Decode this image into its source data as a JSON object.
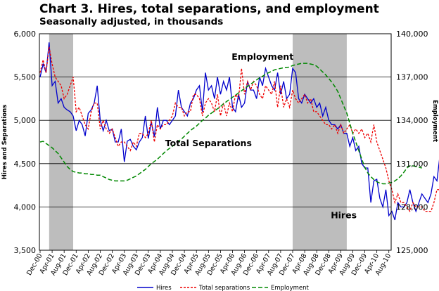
{
  "chart_data": {
    "type": "line",
    "title": "Chart 3. Hires, total separations, and employment",
    "subtitle": "Seasonally adjusted, in thousands",
    "ylabel_left": "Hires and Separations",
    "ylabel_right": "Employment",
    "ylim_left": [
      3500,
      6000
    ],
    "ylim_right": [
      125000,
      140000
    ],
    "yticks_left": [
      "3,500",
      "4,000",
      "4,500",
      "5,000",
      "5,500",
      "6,000"
    ],
    "yticks_right": [
      "125,000",
      "128,000",
      "131,000",
      "134,000",
      "137,000",
      "140,000"
    ],
    "x_start": "2000-12",
    "x_tick_labels": [
      "Dec-00",
      "Apr-01",
      "Aug-01",
      "Dec-01",
      "Apr-02",
      "Aug-02",
      "Dec-02",
      "Apr-03",
      "Aug-03",
      "Dec-03",
      "Apr-04",
      "Aug-04",
      "Dec-04",
      "Apr-05",
      "Aug-05",
      "Dec-05",
      "Apr-06",
      "Aug-06",
      "Dec-06",
      "Apr-07",
      "Aug-07",
      "Dec-07",
      "Apr-08",
      "Aug-08",
      "Dec-08",
      "Apr-09",
      "Aug-09",
      "Dec-09",
      "Apr-10",
      "Aug-10"
    ],
    "recessions": [
      [
        "2001-03",
        "2001-11"
      ],
      [
        "2007-12",
        "2009-06"
      ]
    ],
    "annotations": [
      {
        "text": "Employment",
        "x": "2007-02",
        "y_right": 138200
      },
      {
        "text": "Total Separations",
        "x": "2005-08",
        "y_left": 4700
      },
      {
        "text": "Hires",
        "x": "2009-05",
        "y_left": 3870
      }
    ],
    "legend_position": "bottom",
    "series": [
      {
        "name": "Hires",
        "axis": "left",
        "color": "#0000cc",
        "dash": "solid",
        "values": [
          5500,
          5650,
          5550,
          5900,
          5400,
          5450,
          5200,
          5250,
          5150,
          5120,
          5100,
          5050,
          4880,
          5000,
          4950,
          4820,
          5080,
          5120,
          5200,
          5400,
          5000,
          4880,
          5000,
          4880,
          4900,
          4750,
          4750,
          4900,
          4520,
          4760,
          4780,
          4700,
          4660,
          4750,
          4800,
          5050,
          4790,
          4980,
          4810,
          5150,
          4900,
          5000,
          5000,
          4950,
          5000,
          5050,
          5350,
          5150,
          5100,
          5050,
          5200,
          5250,
          5350,
          5400,
          5100,
          5550,
          5350,
          5400,
          5250,
          5500,
          5300,
          5450,
          5350,
          5500,
          5150,
          5100,
          5300,
          5150,
          5200,
          5450,
          5350,
          5350,
          5250,
          5500,
          5400,
          5600,
          5500,
          5400,
          5350,
          5550,
          5300,
          5450,
          5250,
          5300,
          5600,
          5550,
          5250,
          5200,
          5300,
          5250,
          5200,
          5250,
          5150,
          5200,
          5050,
          5150,
          5000,
          4950,
          4950,
          4900,
          4950,
          4850,
          4850,
          4700,
          4800,
          4650,
          4700,
          4500,
          4450,
          4450,
          4050,
          4300,
          4320,
          4100,
          4000,
          4200,
          3900,
          3950,
          3850,
          4050,
          4000,
          4000,
          4050,
          4200,
          4050,
          3950,
          4050,
          4150,
          4100,
          4050,
          4150,
          4350,
          4300,
          4600,
          4300,
          4250,
          4250,
          4150
        ]
      },
      {
        "name": "Total separations",
        "axis": "left",
        "color": "#ee0000",
        "dash": "dashed",
        "values": [
          5550,
          5700,
          5550,
          5850,
          5650,
          5500,
          5450,
          5400,
          5250,
          5300,
          5400,
          5500,
          5100,
          5150,
          5050,
          4950,
          4900,
          5100,
          5200,
          5200,
          4900,
          5000,
          4900,
          4850,
          4900,
          4800,
          4700,
          4750,
          4750,
          4700,
          4650,
          4750,
          4700,
          4850,
          4850,
          4800,
          4850,
          5000,
          4750,
          4950,
          4900,
          4950,
          4950,
          5000,
          5050,
          5200,
          5150,
          5150,
          5050,
          5100,
          5100,
          5300,
          5300,
          5250,
          5050,
          5200,
          5250,
          5200,
          5100,
          5300,
          5050,
          5200,
          5050,
          5200,
          5100,
          5300,
          5250,
          5600,
          5300,
          5450,
          5350,
          5450,
          5400,
          5300,
          5250,
          5400,
          5350,
          5300,
          5450,
          5150,
          5400,
          5150,
          5250,
          5150,
          5350,
          5250,
          5200,
          5250,
          5300,
          5200,
          5250,
          5100,
          5100,
          5050,
          5000,
          4950,
          4950,
          4900,
          4950,
          4850,
          4950,
          4850,
          4900,
          4950,
          4850,
          4900,
          4850,
          4900,
          4800,
          4850,
          4750,
          4950,
          4750,
          4650,
          4550,
          4450,
          4300,
          4200,
          4050,
          4150,
          4050,
          4050,
          4000,
          3950,
          4050,
          4000,
          4000,
          4000,
          3950,
          3950,
          3950,
          4050,
          4200,
          4200,
          4400,
          4300,
          4350,
          4300
        ]
      },
      {
        "name": "Employment",
        "axis": "right",
        "color": "#008800",
        "dash": "longdash",
        "values": [
          132500,
          132550,
          132400,
          132250,
          132100,
          131900,
          131700,
          131400,
          131100,
          130800,
          130600,
          130450,
          130400,
          130350,
          130350,
          130300,
          130300,
          130250,
          130250,
          130200,
          130200,
          130100,
          130000,
          129900,
          129850,
          129800,
          129800,
          129800,
          129800,
          129850,
          129950,
          130050,
          130150,
          130300,
          130450,
          130600,
          130800,
          131000,
          131150,
          131300,
          131500,
          131700,
          131900,
          132050,
          132200,
          132400,
          132550,
          132700,
          132900,
          133100,
          133300,
          133450,
          133600,
          133800,
          134000,
          134150,
          134350,
          134500,
          134650,
          134800,
          134950,
          135150,
          135300,
          135450,
          135600,
          135750,
          135900,
          136050,
          136200,
          136350,
          136500,
          136650,
          136800,
          136950,
          137050,
          137200,
          137300,
          137400,
          137500,
          137550,
          137600,
          137650,
          137650,
          137700,
          137800,
          137850,
          137900,
          137950,
          137950,
          137950,
          137900,
          137850,
          137750,
          137550,
          137350,
          137150,
          136900,
          136650,
          136350,
          136000,
          135500,
          135000,
          134500,
          133800,
          133100,
          132500,
          131900,
          131300,
          130750,
          130350,
          130100,
          129900,
          129750,
          129650,
          129600,
          129600,
          129650,
          129700,
          129800,
          129950,
          130150,
          130400,
          130700,
          130850,
          130850,
          130800,
          130750,
          130700
        ]
      }
    ]
  },
  "legend": {
    "hires": "Hires",
    "separations": "Total separations",
    "employment": "Employment"
  }
}
